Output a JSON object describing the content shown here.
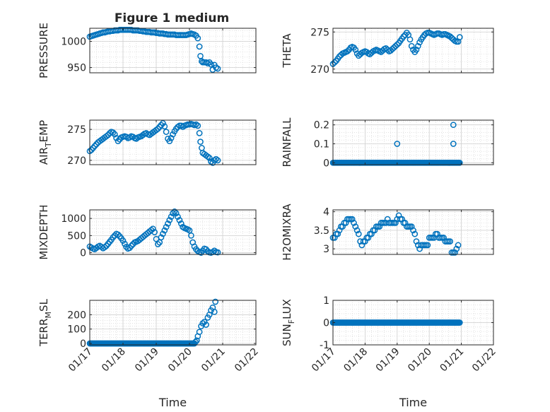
{
  "figure": {
    "title": "Figure 1 medium"
  },
  "chart_data": [
    {
      "type": "scatter",
      "panel": "PRESSURE",
      "ylabel": "PRESSURE",
      "xlabel": "",
      "xticks": [
        "01/17",
        "01/18",
        "01/19",
        "01/20",
        "01/21",
        "01/22"
      ],
      "yticks": [
        950,
        1000
      ],
      "ylim": [
        940,
        1025
      ],
      "grid": true,
      "x": [
        17.0,
        17.05,
        17.1,
        17.15,
        17.2,
        17.25,
        17.3,
        17.35,
        17.4,
        17.45,
        17.5,
        17.55,
        17.6,
        17.65,
        17.7,
        17.75,
        17.8,
        17.85,
        17.9,
        17.95,
        18.0,
        18.05,
        18.1,
        18.15,
        18.2,
        18.25,
        18.3,
        18.35,
        18.4,
        18.45,
        18.5,
        18.55,
        18.6,
        18.65,
        18.7,
        18.75,
        18.8,
        18.85,
        18.9,
        18.95,
        19.0,
        19.05,
        19.1,
        19.15,
        19.2,
        19.25,
        19.3,
        19.35,
        19.4,
        19.45,
        19.5,
        19.55,
        19.6,
        19.65,
        19.7,
        19.75,
        19.8,
        19.85,
        19.9,
        19.95,
        20.0,
        20.05,
        20.1,
        20.15,
        20.2,
        20.25,
        20.3,
        20.33,
        20.37,
        20.4,
        20.45,
        20.5,
        20.55,
        20.6,
        20.65,
        20.7,
        20.75,
        20.8,
        20.85
      ],
      "y": [
        1009,
        1010,
        1011,
        1012,
        1013,
        1014,
        1015,
        1016,
        1017,
        1017,
        1018,
        1019,
        1019,
        1020,
        1020,
        1021,
        1021,
        1021,
        1022,
        1022,
        1022,
        1022,
        1022,
        1022,
        1022,
        1022,
        1021,
        1021,
        1021,
        1021,
        1020,
        1020,
        1019,
        1019,
        1018,
        1018,
        1018,
        1017,
        1017,
        1017,
        1016,
        1016,
        1015,
        1015,
        1015,
        1014,
        1014,
        1013,
        1013,
        1013,
        1013,
        1013,
        1012,
        1012,
        1012,
        1012,
        1012,
        1012,
        1012,
        1013,
        1014,
        1015,
        1014,
        1013,
        1011,
        1006,
        990,
        972,
        962,
        960,
        960,
        960,
        958,
        960,
        956,
        946,
        955,
        950,
        948
      ]
    },
    {
      "type": "scatter",
      "panel": "THETA",
      "ylabel": "THETA",
      "xlabel": "",
      "xticks": [
        "01/17",
        "01/18",
        "01/19",
        "01/20",
        "01/21",
        "01/22"
      ],
      "yticks": [
        270,
        275
      ],
      "ylim": [
        269.5,
        275.5
      ],
      "grid": true,
      "x": [
        17.0,
        17.05,
        17.1,
        17.15,
        17.2,
        17.25,
        17.3,
        17.35,
        17.4,
        17.45,
        17.5,
        17.55,
        17.6,
        17.65,
        17.7,
        17.75,
        17.8,
        17.85,
        17.9,
        17.95,
        18.0,
        18.05,
        18.1,
        18.15,
        18.2,
        18.25,
        18.3,
        18.35,
        18.4,
        18.45,
        18.5,
        18.55,
        18.6,
        18.65,
        18.7,
        18.75,
        18.8,
        18.85,
        18.9,
        18.95,
        19.0,
        19.05,
        19.1,
        19.15,
        19.2,
        19.25,
        19.3,
        19.35,
        19.4,
        19.45,
        19.5,
        19.55,
        19.6,
        19.65,
        19.7,
        19.75,
        19.8,
        19.85,
        19.9,
        19.95,
        20.0,
        20.05,
        20.1,
        20.15,
        20.2,
        20.25,
        20.3,
        20.35,
        20.4,
        20.45,
        20.5,
        20.55,
        20.6,
        20.65,
        20.7,
        20.75,
        20.8,
        20.85,
        20.9,
        20.95
      ],
      "y": [
        270.7,
        270.9,
        271.1,
        271.4,
        271.7,
        271.9,
        272.1,
        272.2,
        272.3,
        272.4,
        272.6,
        272.9,
        273.0,
        272.9,
        272.6,
        272.1,
        271.8,
        272.0,
        272.2,
        272.3,
        272.4,
        272.3,
        272.1,
        272.0,
        272.2,
        272.4,
        272.5,
        272.6,
        272.5,
        272.4,
        272.3,
        272.5,
        272.7,
        272.8,
        272.6,
        272.4,
        272.5,
        272.7,
        272.9,
        273.1,
        273.3,
        273.5,
        273.8,
        274.1,
        274.4,
        274.6,
        274.9,
        274.6,
        274.0,
        273.1,
        272.6,
        272.3,
        272.6,
        273.1,
        273.6,
        274.0,
        274.3,
        274.6,
        274.8,
        274.9,
        274.9,
        274.8,
        274.7,
        274.6,
        274.7,
        274.8,
        274.8,
        274.7,
        274.6,
        274.7,
        274.7,
        274.6,
        274.5,
        274.4,
        274.2,
        274.0,
        273.8,
        273.7,
        273.7,
        274.3
      ]
    },
    {
      "type": "scatter",
      "panel": "AIR_TEMP",
      "ylabel": "AIR_TEMP",
      "xlabel": "",
      "xticks": [
        "01/17",
        "01/18",
        "01/19",
        "01/20",
        "01/21",
        "01/22"
      ],
      "yticks": [
        270,
        275
      ],
      "ylim": [
        269.3,
        276.5
      ],
      "grid": true,
      "x": [
        17.0,
        17.05,
        17.1,
        17.15,
        17.2,
        17.25,
        17.3,
        17.35,
        17.4,
        17.45,
        17.5,
        17.55,
        17.6,
        17.65,
        17.7,
        17.75,
        17.8,
        17.85,
        17.9,
        17.95,
        18.0,
        18.05,
        18.1,
        18.15,
        18.2,
        18.25,
        18.3,
        18.35,
        18.4,
        18.45,
        18.5,
        18.55,
        18.6,
        18.65,
        18.7,
        18.75,
        18.8,
        18.85,
        18.9,
        18.95,
        19.0,
        19.05,
        19.1,
        19.15,
        19.2,
        19.25,
        19.3,
        19.35,
        19.4,
        19.45,
        19.5,
        19.55,
        19.6,
        19.65,
        19.7,
        19.75,
        19.8,
        19.85,
        19.9,
        19.95,
        20.0,
        20.05,
        20.1,
        20.15,
        20.2,
        20.25,
        20.3,
        20.33,
        20.37,
        20.4,
        20.45,
        20.5,
        20.55,
        20.6,
        20.65,
        20.7,
        20.75,
        20.8,
        20.85
      ],
      "y": [
        271.5,
        271.7,
        272.0,
        272.3,
        272.6,
        272.9,
        273.1,
        273.3,
        273.5,
        273.7,
        273.9,
        274.1,
        274.4,
        274.6,
        274.5,
        274.2,
        273.6,
        273.1,
        273.4,
        273.7,
        273.8,
        273.9,
        273.8,
        273.6,
        273.7,
        273.9,
        273.8,
        273.6,
        273.5,
        273.7,
        273.8,
        273.9,
        274.1,
        274.3,
        274.4,
        274.2,
        274.1,
        274.3,
        274.5,
        274.7,
        274.9,
        275.1,
        275.4,
        275.7,
        276.0,
        275.5,
        274.6,
        273.5,
        273.1,
        273.6,
        274.2,
        274.7,
        275.1,
        275.4,
        275.6,
        275.6,
        275.4,
        275.6,
        275.7,
        275.8,
        275.8,
        275.9,
        275.8,
        275.7,
        275.8,
        275.6,
        274.4,
        273.0,
        272.0,
        271.2,
        271.0,
        270.8,
        270.6,
        270.4,
        269.8,
        269.6,
        270.0,
        270.2,
        270.0
      ]
    },
    {
      "type": "scatter",
      "panel": "RAINFALL",
      "ylabel": "RAINFALL",
      "xlabel": "",
      "xticks": [
        "01/17",
        "01/18",
        "01/19",
        "01/20",
        "01/21",
        "01/22"
      ],
      "yticks": [
        0,
        0.1,
        0.2
      ],
      "ylim": [
        -0.01,
        0.225
      ],
      "grid": true,
      "baseline": {
        "from": 17.0,
        "to": 20.95,
        "value": 0
      },
      "x": [
        19.0,
        20.75,
        20.75
      ],
      "y": [
        0.1,
        0.1,
        0.2
      ]
    },
    {
      "type": "scatter",
      "panel": "MIXDEPTH",
      "ylabel": "MIXDEPTH",
      "xlabel": "",
      "xticks": [
        "01/17",
        "01/18",
        "01/19",
        "01/20",
        "01/21",
        "01/22"
      ],
      "yticks": [
        0,
        500,
        1000
      ],
      "ylim": [
        -50,
        1250
      ],
      "grid": true,
      "x": [
        17.0,
        17.05,
        17.1,
        17.15,
        17.2,
        17.25,
        17.3,
        17.35,
        17.4,
        17.45,
        17.5,
        17.55,
        17.6,
        17.65,
        17.7,
        17.75,
        17.8,
        17.85,
        17.9,
        17.95,
        18.0,
        18.05,
        18.1,
        18.15,
        18.2,
        18.25,
        18.3,
        18.35,
        18.4,
        18.45,
        18.5,
        18.55,
        18.6,
        18.65,
        18.7,
        18.75,
        18.8,
        18.85,
        18.9,
        18.95,
        19.0,
        19.05,
        19.1,
        19.15,
        19.2,
        19.25,
        19.3,
        19.35,
        19.4,
        19.45,
        19.5,
        19.55,
        19.6,
        19.65,
        19.7,
        19.75,
        19.8,
        19.85,
        19.9,
        19.95,
        20.0,
        20.05,
        20.1,
        20.15,
        20.2,
        20.25,
        20.3,
        20.35,
        20.4,
        20.45,
        20.5,
        20.55,
        20.6,
        20.65,
        20.7,
        20.75,
        20.8,
        20.85
      ],
      "y": [
        180,
        150,
        120,
        100,
        140,
        180,
        200,
        170,
        130,
        160,
        200,
        260,
        320,
        380,
        450,
        500,
        550,
        530,
        480,
        420,
        350,
        260,
        170,
        120,
        140,
        200,
        250,
        300,
        320,
        340,
        380,
        420,
        460,
        500,
        540,
        580,
        620,
        660,
        700,
        600,
        400,
        250,
        300,
        450,
        550,
        650,
        750,
        850,
        950,
        1050,
        1150,
        1200,
        1150,
        1050,
        950,
        850,
        750,
        720,
        700,
        680,
        650,
        500,
        300,
        180,
        100,
        50,
        20,
        0,
        60,
        120,
        100,
        40,
        10,
        0,
        20,
        60,
        20,
        10
      ]
    },
    {
      "type": "scatter",
      "panel": "H2OMIXRA",
      "ylabel": "H2OMIXRA",
      "xlabel": "",
      "xticks": [
        "01/17",
        "01/18",
        "01/19",
        "01/20",
        "01/21",
        "01/22"
      ],
      "yticks": [
        3,
        3.5,
        4
      ],
      "ylim": [
        2.85,
        4.05
      ],
      "grid": true,
      "x": [
        17.0,
        17.05,
        17.1,
        17.15,
        17.2,
        17.25,
        17.3,
        17.35,
        17.4,
        17.45,
        17.5,
        17.55,
        17.6,
        17.65,
        17.7,
        17.75,
        17.8,
        17.85,
        17.9,
        17.95,
        18.0,
        18.05,
        18.1,
        18.15,
        18.2,
        18.25,
        18.3,
        18.35,
        18.4,
        18.45,
        18.5,
        18.55,
        18.6,
        18.65,
        18.7,
        18.75,
        18.8,
        18.85,
        18.9,
        18.95,
        19.0,
        19.05,
        19.1,
        19.15,
        19.2,
        19.25,
        19.3,
        19.35,
        19.4,
        19.45,
        19.5,
        19.55,
        19.6,
        19.65,
        19.7,
        19.75,
        19.8,
        19.85,
        19.9,
        19.95,
        20.0,
        20.05,
        20.1,
        20.15,
        20.2,
        20.25,
        20.3,
        20.35,
        20.4,
        20.45,
        20.5,
        20.55,
        20.6,
        20.65,
        20.7,
        20.75,
        20.8,
        20.85,
        20.9
      ],
      "y": [
        3.3,
        3.3,
        3.4,
        3.4,
        3.5,
        3.6,
        3.6,
        3.7,
        3.7,
        3.8,
        3.8,
        3.8,
        3.8,
        3.7,
        3.6,
        3.5,
        3.4,
        3.2,
        3.1,
        3.2,
        3.2,
        3.3,
        3.3,
        3.4,
        3.4,
        3.5,
        3.5,
        3.6,
        3.6,
        3.6,
        3.7,
        3.7,
        3.7,
        3.7,
        3.8,
        3.7,
        3.7,
        3.7,
        3.7,
        3.7,
        3.8,
        3.9,
        3.8,
        3.8,
        3.7,
        3.7,
        3.6,
        3.6,
        3.6,
        3.6,
        3.5,
        3.4,
        3.2,
        3.1,
        3.0,
        3.1,
        3.1,
        3.1,
        3.1,
        3.1,
        3.3,
        3.3,
        3.3,
        3.3,
        3.4,
        3.4,
        3.3,
        3.3,
        3.3,
        3.3,
        3.2,
        3.2,
        3.2,
        3.2,
        2.9,
        2.9,
        2.9,
        3.0,
        3.1
      ]
    },
    {
      "type": "scatter",
      "panel": "TERR_MSL",
      "ylabel": "TERR_MSL",
      "xlabel": "Time",
      "xticks": [
        "01/17",
        "01/18",
        "01/19",
        "01/20",
        "01/21",
        "01/22"
      ],
      "yticks": [
        0,
        100,
        200
      ],
      "ylim": [
        -10,
        300
      ],
      "grid": true,
      "baseline": {
        "from": 17.0,
        "to": 20.15,
        "value": 0
      },
      "x": [
        20.18,
        20.22,
        20.25,
        20.3,
        20.35,
        20.4,
        20.45,
        20.5,
        20.55,
        20.6,
        20.65,
        20.7,
        20.75,
        20.78
      ],
      "y": [
        10,
        20,
        50,
        80,
        120,
        140,
        150,
        130,
        180,
        200,
        230,
        250,
        220,
        290
      ]
    },
    {
      "type": "scatter",
      "panel": "SUN_FLUX",
      "ylabel": "SUN_FLUX",
      "xlabel": "Time",
      "xticks": [
        "01/17",
        "01/18",
        "01/19",
        "01/20",
        "01/21",
        "01/22"
      ],
      "yticks": [
        -1,
        0,
        1
      ],
      "ylim": [
        -1,
        1
      ],
      "grid": true,
      "baseline": {
        "from": 17.0,
        "to": 20.95,
        "value": 0
      },
      "x": [],
      "y": []
    }
  ]
}
